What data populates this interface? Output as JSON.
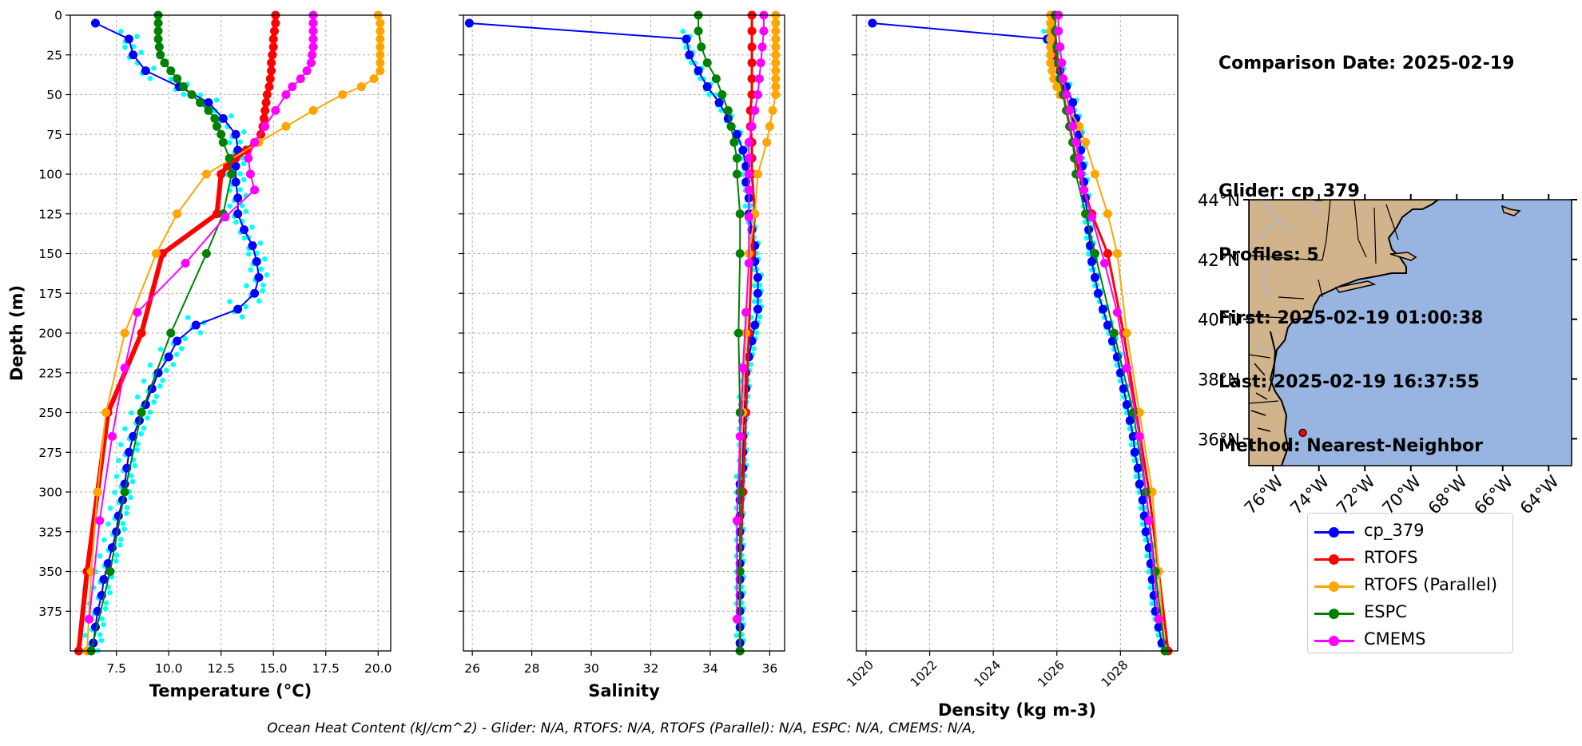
{
  "chart_data": [
    {
      "type": "line",
      "xlabel": "Temperature (°C)",
      "ylabel": "Depth (m)",
      "xlim": [
        5.3,
        20.6
      ],
      "ylim": [
        400,
        0
      ],
      "xticks": [
        7.5,
        10.0,
        12.5,
        15.0,
        17.5,
        20.0
      ],
      "yticks": [
        0,
        25,
        50,
        75,
        100,
        125,
        150,
        175,
        200,
        225,
        250,
        275,
        300,
        325,
        350,
        375
      ],
      "grid": true,
      "series": [
        {
          "name": "cp_379",
          "depth": [
            5,
            15,
            25,
            35,
            45,
            55,
            65,
            75,
            85,
            95,
            105,
            115,
            125,
            135,
            145,
            155,
            165,
            175,
            185,
            195,
            205,
            215,
            225,
            235,
            245,
            255,
            265,
            275,
            285,
            295,
            305,
            315,
            325,
            335,
            345,
            355,
            365,
            375,
            385,
            395
          ],
          "values": [
            6.5,
            8.1,
            8.3,
            8.9,
            10.5,
            11.9,
            12.6,
            13.2,
            13.3,
            13.2,
            13.2,
            13.3,
            13.3,
            13.6,
            14.0,
            14.2,
            14.3,
            14.1,
            13.3,
            11.3,
            10.4,
            10.0,
            9.5,
            9.2,
            8.9,
            8.6,
            8.3,
            8.1,
            8.0,
            7.9,
            7.8,
            7.6,
            7.5,
            7.3,
            7.1,
            6.9,
            6.8,
            6.6,
            6.5,
            6.4
          ]
        },
        {
          "name": "RTOFS",
          "depth": [
            0,
            5,
            10,
            15,
            20,
            25,
            30,
            35,
            40,
            45,
            50,
            55,
            60,
            65,
            70,
            75,
            80,
            85,
            90,
            95,
            100,
            125,
            150,
            200,
            250,
            300,
            350,
            400
          ],
          "values": [
            15.1,
            15.1,
            15.05,
            15.0,
            15.0,
            14.95,
            14.9,
            14.9,
            14.85,
            14.8,
            14.7,
            14.65,
            14.6,
            14.55,
            14.5,
            14.4,
            14.2,
            13.7,
            13.2,
            12.8,
            12.5,
            12.3,
            9.7,
            8.7,
            7.1,
            6.6,
            6.1,
            5.7
          ]
        },
        {
          "name": "RTOFS (Parallel)",
          "depth": [
            0,
            5,
            10,
            15,
            20,
            25,
            30,
            35,
            40,
            45,
            50,
            60,
            70,
            80,
            100,
            125,
            150,
            200,
            250,
            300,
            350,
            400
          ],
          "values": [
            20.0,
            20.1,
            20.1,
            20.1,
            20.1,
            20.1,
            20.1,
            20.1,
            19.8,
            19.2,
            18.3,
            16.9,
            15.6,
            14.3,
            11.8,
            10.4,
            9.4,
            7.9,
            7.0,
            6.6,
            6.3,
            6.1
          ]
        },
        {
          "name": "ESPC",
          "depth": [
            0,
            5,
            10,
            15,
            20,
            25,
            30,
            35,
            40,
            45,
            50,
            55,
            60,
            65,
            70,
            75,
            80,
            90,
            100,
            125,
            150,
            200,
            250,
            300,
            350,
            400
          ],
          "values": [
            9.5,
            9.5,
            9.5,
            9.5,
            9.55,
            9.6,
            9.8,
            10.1,
            10.4,
            10.7,
            11.1,
            11.5,
            11.9,
            12.2,
            12.3,
            12.5,
            12.6,
            12.9,
            13.0,
            12.6,
            11.8,
            10.1,
            8.7,
            7.9,
            7.2,
            6.3
          ]
        },
        {
          "name": "CMEMS",
          "depth": [
            0,
            5,
            10,
            15,
            20,
            25,
            30,
            35,
            40,
            45,
            50,
            60,
            70,
            80,
            90,
            100,
            110,
            127,
            156,
            187,
            222,
            265,
            318,
            380
          ],
          "values": [
            16.9,
            16.9,
            16.9,
            16.9,
            16.9,
            16.85,
            16.8,
            16.6,
            16.3,
            15.9,
            15.6,
            15.1,
            14.6,
            14.1,
            13.8,
            13.9,
            14.1,
            12.7,
            10.8,
            8.5,
            7.9,
            7.3,
            6.7,
            6.2
          ]
        }
      ]
    },
    {
      "type": "line",
      "xlabel": "Salinity",
      "ylim": [
        400,
        0
      ],
      "xlim": [
        25.7,
        36.5
      ],
      "xticks": [
        26,
        28,
        30,
        32,
        34,
        36
      ],
      "grid": true,
      "series": [
        {
          "name": "cp_379",
          "depth": [
            5,
            15,
            25,
            35,
            45,
            55,
            65,
            75,
            85,
            95,
            105,
            115,
            125,
            135,
            145,
            155,
            165,
            175,
            185,
            195,
            205,
            215,
            225,
            235,
            245,
            255,
            265,
            275,
            285,
            295,
            305,
            315,
            325,
            335,
            345,
            355,
            365,
            375,
            385,
            395
          ],
          "values": [
            25.9,
            33.2,
            33.3,
            33.6,
            33.9,
            34.3,
            34.6,
            34.9,
            35.1,
            35.2,
            35.2,
            35.3,
            35.3,
            35.4,
            35.5,
            35.5,
            35.6,
            35.6,
            35.6,
            35.5,
            35.4,
            35.3,
            35.2,
            35.2,
            35.1,
            35.1,
            35.1,
            35.1,
            35.1,
            35.0,
            35.0,
            35.0,
            35.0,
            35.0,
            35.0,
            35.0,
            35.0,
            35.0,
            35.0,
            35.0
          ]
        },
        {
          "name": "RTOFS",
          "depth": [
            0,
            10,
            20,
            30,
            40,
            50,
            60,
            70,
            80,
            90,
            100,
            125,
            150,
            200,
            250,
            300,
            350,
            400
          ],
          "values": [
            35.4,
            35.4,
            35.4,
            35.4,
            35.4,
            35.4,
            35.35,
            35.35,
            35.4,
            35.4,
            35.4,
            35.5,
            35.4,
            35.3,
            35.2,
            35.1,
            35.0,
            35.0
          ]
        },
        {
          "name": "RTOFS (Parallel)",
          "depth": [
            0,
            5,
            10,
            15,
            20,
            25,
            30,
            35,
            40,
            45,
            50,
            60,
            70,
            80,
            100,
            125,
            150,
            200,
            250,
            300,
            350,
            400
          ],
          "values": [
            36.2,
            36.2,
            36.2,
            36.2,
            36.2,
            36.2,
            36.2,
            36.2,
            36.2,
            36.2,
            36.2,
            36.1,
            36.0,
            35.9,
            35.6,
            35.5,
            35.3,
            35.2,
            35.1,
            35.0,
            35.0,
            35.0
          ]
        },
        {
          "name": "ESPC",
          "depth": [
            0,
            10,
            20,
            30,
            40,
            50,
            60,
            70,
            80,
            90,
            100,
            125,
            150,
            200,
            250,
            300,
            350,
            400
          ],
          "values": [
            33.6,
            33.6,
            33.7,
            33.9,
            34.2,
            34.4,
            34.6,
            34.7,
            34.8,
            34.9,
            34.9,
            35.0,
            35.0,
            34.95,
            35.0,
            35.0,
            35.0,
            35.0
          ]
        },
        {
          "name": "CMEMS",
          "depth": [
            0,
            10,
            20,
            30,
            40,
            50,
            60,
            70,
            80,
            90,
            100,
            110,
            127,
            156,
            187,
            222,
            265,
            318,
            380
          ],
          "values": [
            35.8,
            35.8,
            35.75,
            35.7,
            35.65,
            35.6,
            35.5,
            35.4,
            35.3,
            35.3,
            35.3,
            35.3,
            35.3,
            35.3,
            35.2,
            35.1,
            35.0,
            34.9,
            34.9
          ]
        }
      ]
    },
    {
      "type": "line",
      "xlabel": "Density (kg m-3)",
      "ylim": [
        400,
        0
      ],
      "xlim": [
        1019.7,
        1029.8
      ],
      "xticks": [
        1020,
        1022,
        1024,
        1026,
        1028
      ],
      "grid": true,
      "series": [
        {
          "name": "cp_379",
          "depth": [
            5,
            15,
            25,
            35,
            45,
            55,
            65,
            75,
            85,
            95,
            105,
            115,
            125,
            135,
            145,
            155,
            165,
            175,
            185,
            195,
            205,
            215,
            225,
            235,
            245,
            255,
            265,
            275,
            285,
            295,
            305,
            315,
            325,
            335,
            345,
            355,
            365,
            375,
            385,
            395
          ],
          "values": [
            1020.2,
            1025.7,
            1025.9,
            1026.1,
            1026.3,
            1026.5,
            1026.6,
            1026.7,
            1026.75,
            1026.8,
            1026.85,
            1026.9,
            1026.95,
            1027.0,
            1027.05,
            1027.1,
            1027.2,
            1027.3,
            1027.45,
            1027.6,
            1027.75,
            1027.9,
            1028.0,
            1028.1,
            1028.2,
            1028.3,
            1028.4,
            1028.45,
            1028.55,
            1028.6,
            1028.7,
            1028.75,
            1028.8,
            1028.9,
            1028.95,
            1029.0,
            1029.05,
            1029.1,
            1029.2,
            1029.3
          ]
        },
        {
          "name": "RTOFS",
          "depth": [
            0,
            10,
            20,
            30,
            40,
            50,
            60,
            70,
            80,
            90,
            100,
            125,
            150,
            200,
            250,
            300,
            350,
            400
          ],
          "values": [
            1025.9,
            1025.9,
            1025.95,
            1026.0,
            1026.1,
            1026.2,
            1026.3,
            1026.4,
            1026.5,
            1026.6,
            1026.7,
            1027.1,
            1027.6,
            1028.1,
            1028.5,
            1028.9,
            1029.2,
            1029.5
          ]
        },
        {
          "name": "RTOFS (Parallel)",
          "depth": [
            0,
            5,
            10,
            15,
            20,
            25,
            30,
            35,
            40,
            45,
            50,
            60,
            70,
            80,
            100,
            125,
            150,
            200,
            250,
            300,
            350,
            400
          ],
          "values": [
            1025.8,
            1025.8,
            1025.8,
            1025.8,
            1025.8,
            1025.8,
            1025.8,
            1025.85,
            1025.9,
            1026.0,
            1026.1,
            1026.4,
            1026.7,
            1026.9,
            1027.2,
            1027.6,
            1027.9,
            1028.2,
            1028.6,
            1029.0,
            1029.2,
            1029.4
          ]
        },
        {
          "name": "ESPC",
          "depth": [
            0,
            10,
            20,
            30,
            40,
            50,
            60,
            70,
            80,
            90,
            100,
            125,
            150,
            200,
            250,
            300,
            350,
            400
          ],
          "values": [
            1025.95,
            1025.95,
            1026.0,
            1026.05,
            1026.1,
            1026.2,
            1026.3,
            1026.4,
            1026.5,
            1026.55,
            1026.6,
            1026.9,
            1027.2,
            1027.8,
            1028.4,
            1028.8,
            1029.1,
            1029.4
          ]
        },
        {
          "name": "CMEMS",
          "depth": [
            0,
            10,
            20,
            30,
            40,
            50,
            60,
            70,
            80,
            90,
            100,
            110,
            127,
            156,
            187,
            222,
            265,
            318,
            380
          ],
          "values": [
            1026.05,
            1026.05,
            1026.1,
            1026.15,
            1026.2,
            1026.3,
            1026.4,
            1026.5,
            1026.6,
            1026.7,
            1026.75,
            1026.85,
            1027.1,
            1027.5,
            1027.9,
            1028.2,
            1028.6,
            1028.9,
            1029.2
          ]
        }
      ]
    }
  ],
  "series_colors": {
    "cp_379": "#0000ff",
    "RTOFS": "#ff0000",
    "RTOFS (Parallel)": "#ffa500",
    "ESPC": "#008000",
    "CMEMS": "#ff00ff",
    "glider_raw": "#00ffff"
  },
  "info": {
    "comparison_date": "Comparison Date: 2025-02-19",
    "glider": "Glider: cp_379",
    "profiles": "Profiles: 5",
    "first": "First: 2025-02-19 01:00:38",
    "last": "Last: 2025-02-19 16:37:55",
    "method": "Method: Nearest-Neighbor"
  },
  "map": {
    "lat_labels": [
      "44°N",
      "42°N",
      "40°N",
      "38°N",
      "36°N"
    ],
    "lon_labels": [
      "76°W",
      "74°W",
      "72°W",
      "70°W",
      "68°W",
      "66°W",
      "64°W"
    ],
    "glider_position": {
      "lat": 36.2,
      "lon": -74.7
    },
    "land_color": "#d2b48c",
    "ocean_color": "#98b4e0"
  },
  "legend": {
    "entries": [
      "cp_379",
      "RTOFS",
      "RTOFS (Parallel)",
      "ESPC",
      "CMEMS"
    ]
  },
  "footer": "Ocean Heat Content (kJ/cm^2) - Glider: N/A,  RTOFS: N/A,  RTOFS (Parallel): N/A,  ESPC: N/A,  CMEMS: N/A,"
}
